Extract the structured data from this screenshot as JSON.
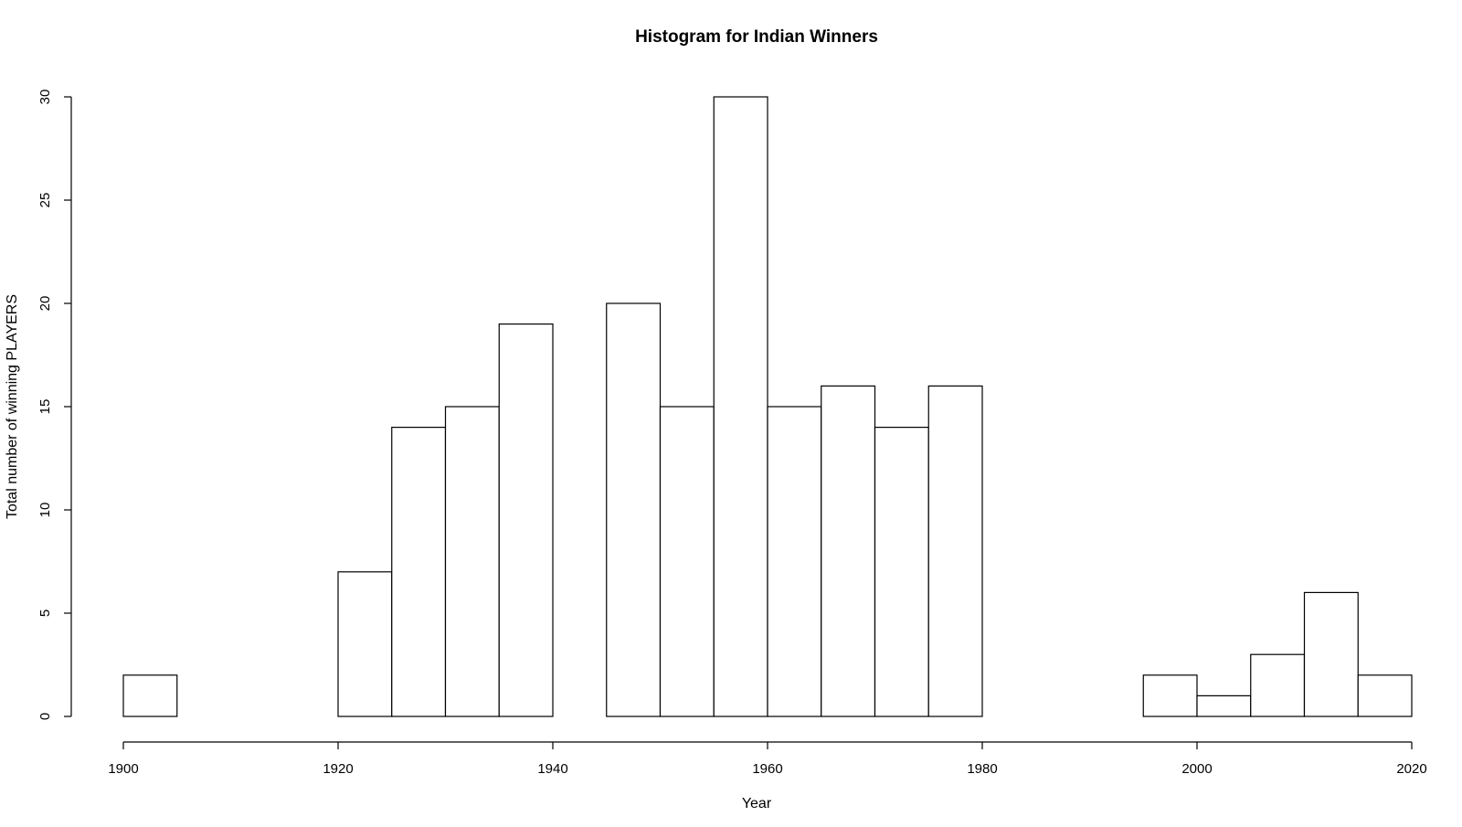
{
  "chart_data": {
    "type": "bar",
    "title": "Histogram for Indian Winners",
    "xlabel": "Year",
    "ylabel": "Total number of winning PLAYERS",
    "bin_width": 5,
    "bins": [
      {
        "start": 1900,
        "end": 1905,
        "count": 2
      },
      {
        "start": 1905,
        "end": 1910,
        "count": 0
      },
      {
        "start": 1910,
        "end": 1915,
        "count": 0
      },
      {
        "start": 1915,
        "end": 1920,
        "count": 0
      },
      {
        "start": 1920,
        "end": 1925,
        "count": 7
      },
      {
        "start": 1925,
        "end": 1930,
        "count": 14
      },
      {
        "start": 1930,
        "end": 1935,
        "count": 15
      },
      {
        "start": 1935,
        "end": 1940,
        "count": 19
      },
      {
        "start": 1940,
        "end": 1945,
        "count": 0
      },
      {
        "start": 1945,
        "end": 1950,
        "count": 20
      },
      {
        "start": 1950,
        "end": 1955,
        "count": 15
      },
      {
        "start": 1955,
        "end": 1960,
        "count": 30
      },
      {
        "start": 1960,
        "end": 1965,
        "count": 15
      },
      {
        "start": 1965,
        "end": 1970,
        "count": 16
      },
      {
        "start": 1970,
        "end": 1975,
        "count": 14
      },
      {
        "start": 1975,
        "end": 1980,
        "count": 16
      },
      {
        "start": 1980,
        "end": 1985,
        "count": 0
      },
      {
        "start": 1985,
        "end": 1990,
        "count": 0
      },
      {
        "start": 1990,
        "end": 1995,
        "count": 0
      },
      {
        "start": 1995,
        "end": 2000,
        "count": 2
      },
      {
        "start": 2000,
        "end": 2005,
        "count": 1
      },
      {
        "start": 2005,
        "end": 2010,
        "count": 3
      },
      {
        "start": 2010,
        "end": 2015,
        "count": 6
      },
      {
        "start": 2015,
        "end": 2020,
        "count": 2
      }
    ],
    "xlim": [
      1900,
      2020
    ],
    "ylim": [
      0,
      30
    ],
    "xticks": [
      "1900",
      "1920",
      "1940",
      "1960",
      "1980",
      "2000",
      "2020"
    ],
    "yticks": [
      "0",
      "5",
      "10",
      "15",
      "20",
      "25",
      "30"
    ],
    "grid": false,
    "legend": "none",
    "bar_fill": "#ffffff",
    "bar_stroke": "#000000"
  }
}
